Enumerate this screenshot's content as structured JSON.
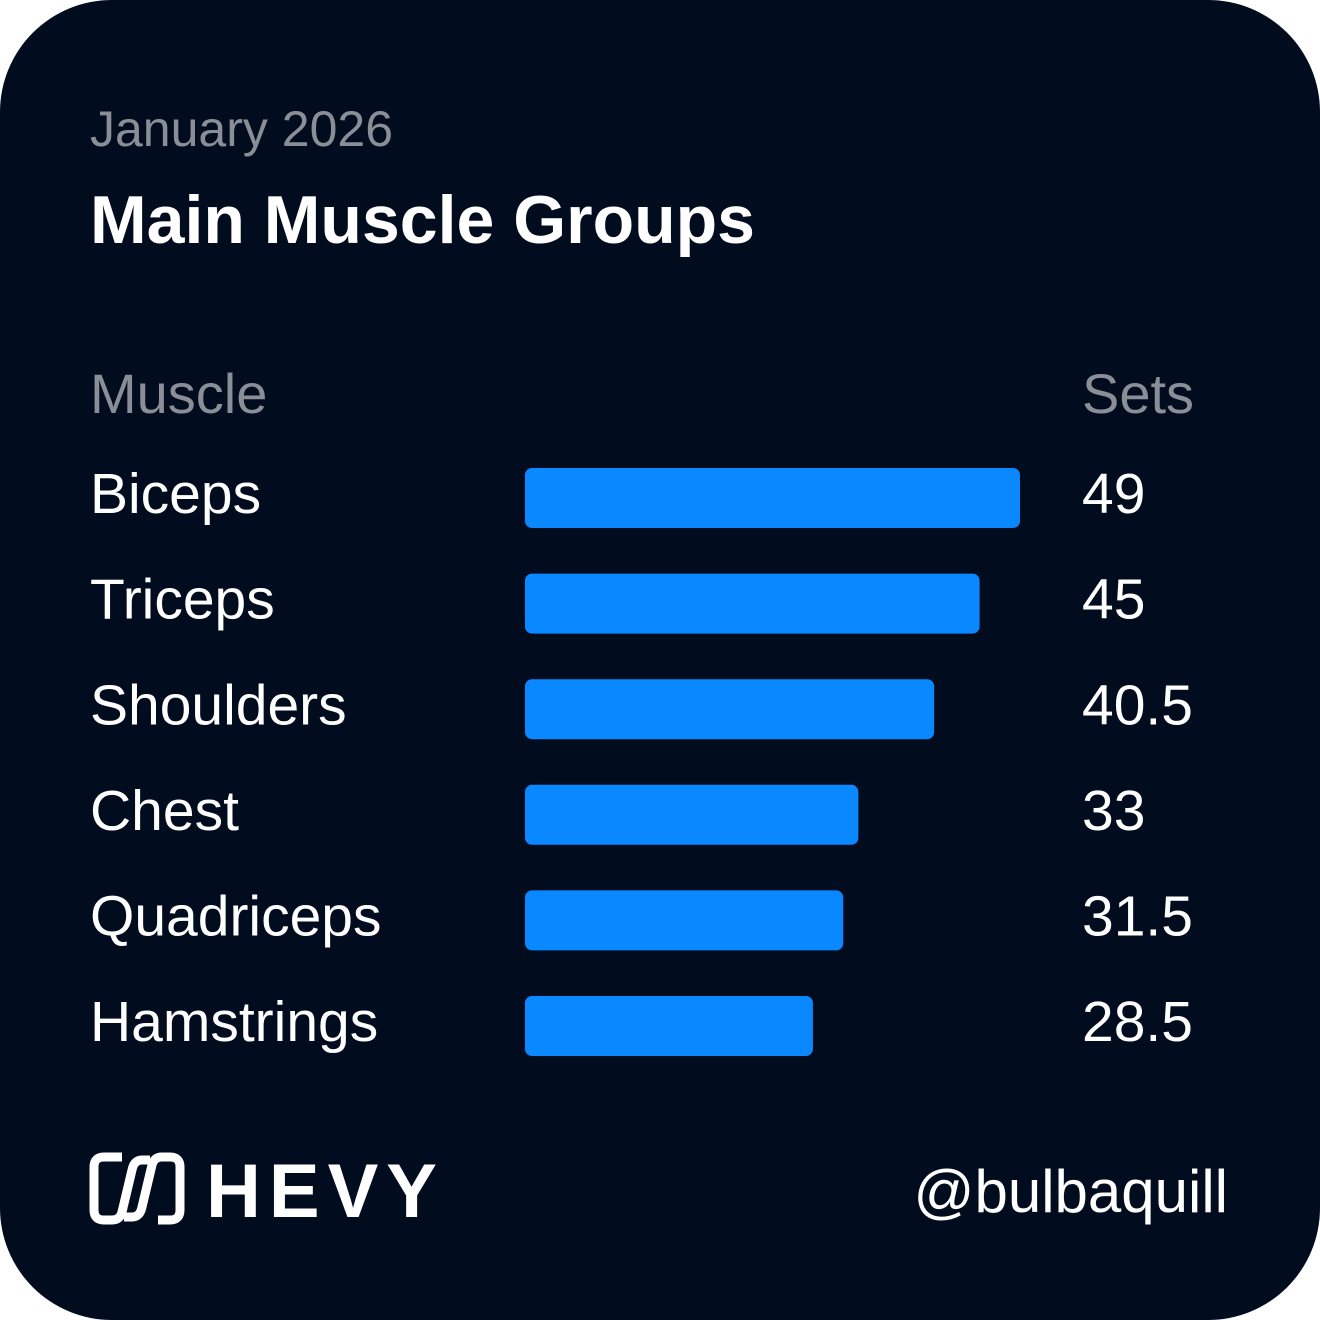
{
  "chart_data": {
    "type": "bar",
    "orientation": "horizontal",
    "subtitle": "January 2026",
    "title": "Main Muscle Groups",
    "category_header": "Muscle",
    "value_header": "Sets",
    "categories": [
      "Biceps",
      "Triceps",
      "Shoulders",
      "Chest",
      "Quadriceps",
      "Hamstrings"
    ],
    "values": [
      49,
      45,
      40.5,
      33,
      31.5,
      28.5
    ],
    "color": "#0a88ff"
  },
  "footer": {
    "brand": "HEVY",
    "handle": "@bulbaquill"
  }
}
